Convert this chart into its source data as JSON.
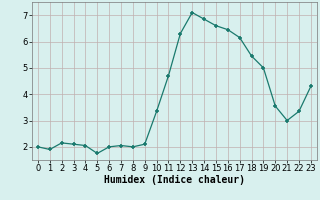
{
  "x": [
    0,
    1,
    2,
    3,
    4,
    5,
    6,
    7,
    8,
    9,
    10,
    11,
    12,
    13,
    14,
    15,
    16,
    17,
    18,
    19,
    20,
    21,
    22,
    23
  ],
  "y": [
    2.0,
    1.9,
    2.15,
    2.1,
    2.05,
    1.75,
    2.0,
    2.05,
    2.0,
    2.1,
    3.35,
    4.7,
    6.3,
    7.1,
    6.85,
    6.6,
    6.45,
    6.15,
    5.45,
    5.0,
    3.55,
    3.0,
    3.35,
    4.3
  ],
  "line_color": "#1a7a6e",
  "marker_color": "#1a7a6e",
  "bg_color": "#d8f0ee",
  "grid_color": "#c0b0b0",
  "xlabel": "Humidex (Indice chaleur)",
  "ylim": [
    1.5,
    7.5
  ],
  "xlim": [
    -0.5,
    23.5
  ],
  "yticks": [
    2,
    3,
    4,
    5,
    6,
    7
  ],
  "xticks": [
    0,
    1,
    2,
    3,
    4,
    5,
    6,
    7,
    8,
    9,
    10,
    11,
    12,
    13,
    14,
    15,
    16,
    17,
    18,
    19,
    20,
    21,
    22,
    23
  ],
  "xlabel_fontsize": 7,
  "tick_fontsize": 6
}
